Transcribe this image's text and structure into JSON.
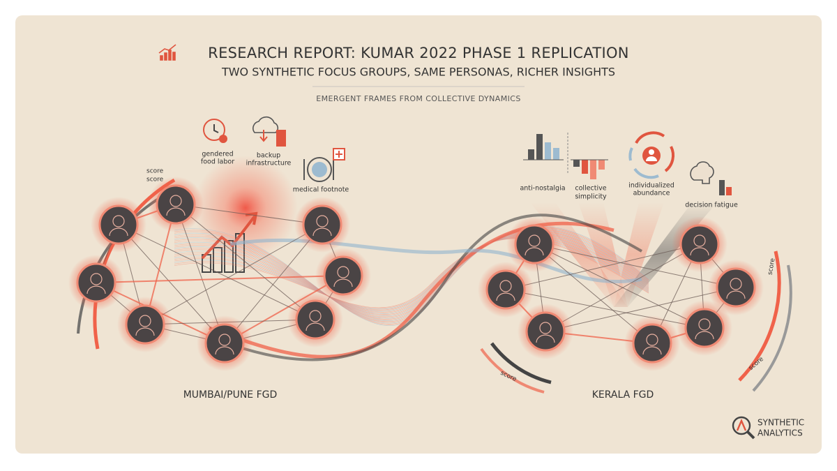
{
  "header": {
    "title": "RESEARCH REPORT: KUMAR 2022 PHASE 1 REPLICATION",
    "subtitle": "TWO SYNTHETIC FOCUS GROUPS, SAME PERSONAS, RICHER INSIGHTS",
    "section": "EMERGENT FRAMES FROM COLLECTIVE DYNAMICS"
  },
  "groups": [
    {
      "label": "MUMBAI/PUNE FGD",
      "frames": [
        {
          "lines": [
            "gendered",
            "food labor"
          ]
        },
        {
          "lines": [
            "backup",
            "infrastructure"
          ]
        },
        {
          "lines": [
            "medical footnote"
          ]
        }
      ],
      "score_labels": [
        "score",
        "score"
      ]
    },
    {
      "label": "KERALA FGD",
      "frames": [
        {
          "lines": [
            "anti-nostalgia"
          ]
        },
        {
          "lines": [
            "collective",
            "simplicity"
          ]
        },
        {
          "lines": [
            "individualized",
            "abundance"
          ]
        },
        {
          "lines": [
            "decision fatigue"
          ]
        }
      ],
      "score_labels": [
        "score",
        "score",
        "score"
      ]
    }
  ],
  "logo": {
    "lines": [
      "SYNTHETIC",
      "ANALYTICS"
    ]
  }
}
